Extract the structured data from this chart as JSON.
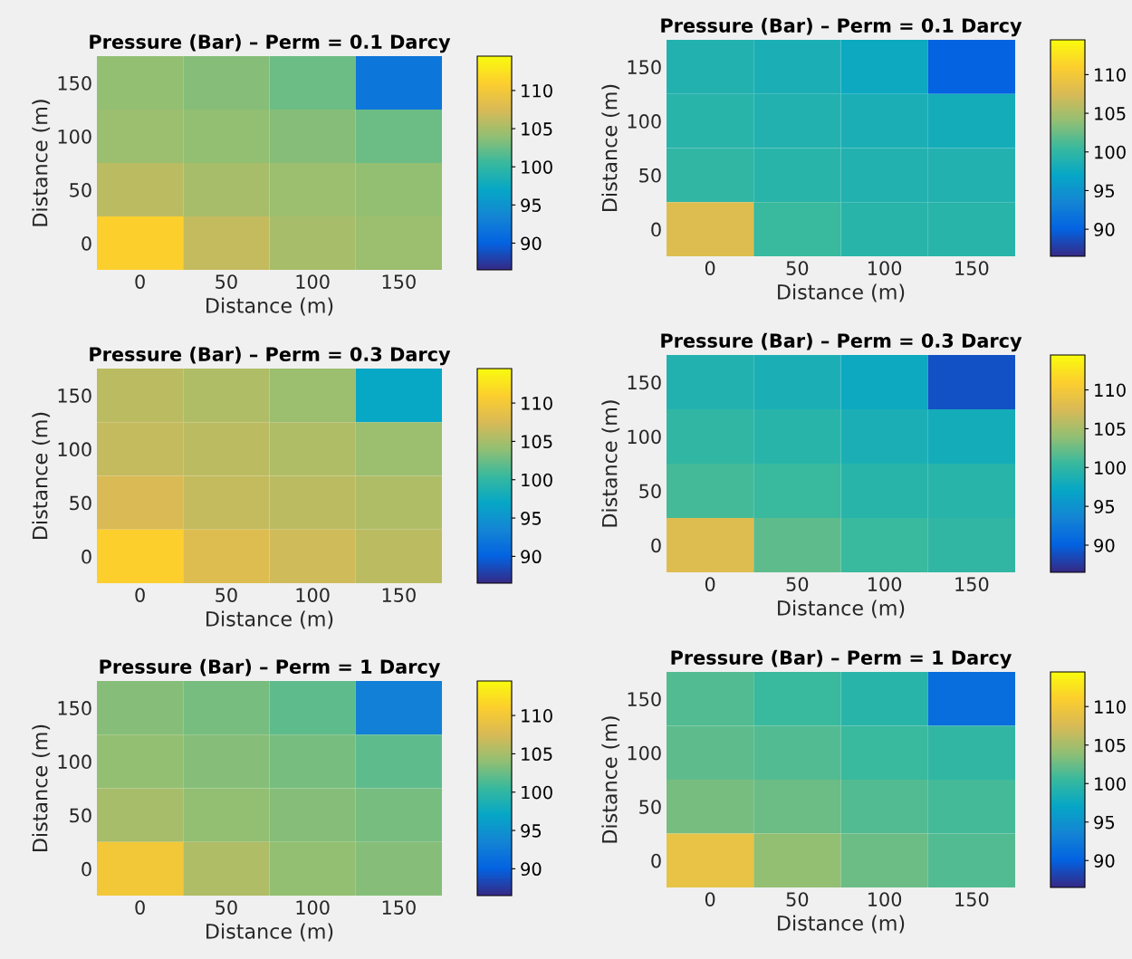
{
  "chart_data": [
    {
      "type": "heatmap",
      "title": "Pressure (Bar) – Perm = 0.1 Darcy",
      "xlabel": "Distance (m)",
      "ylabel": "Distance (m)",
      "categories": [
        "0",
        "50",
        "100",
        "150"
      ],
      "y_categories": [
        "150",
        "100",
        "50",
        "0"
      ],
      "clim": [
        86.5,
        114.5
      ],
      "cticks": [
        90,
        95,
        100,
        105,
        110
      ],
      "grid": false,
      "cells": [
        [
          104,
          103.5,
          102.5,
          92
        ],
        [
          104.5,
          104,
          103.5,
          102.5
        ],
        [
          106,
          105,
          104.5,
          104
        ],
        [
          111,
          106.5,
          105,
          104.5
        ]
      ]
    },
    {
      "type": "heatmap",
      "title": "Pressure (Bar) – Perm = 0.1 Darcy",
      "xlabel": "Distance (m)",
      "ylabel": "Distance (m)",
      "categories": [
        "0",
        "50",
        "100",
        "150"
      ],
      "y_categories": [
        "150",
        "100",
        "50",
        "0"
      ],
      "clim": [
        86.5,
        114.5
      ],
      "cticks": [
        90,
        95,
        100,
        105,
        110
      ],
      "grid": false,
      "cells": [
        [
          99,
          98.5,
          97.5,
          90
        ],
        [
          99.5,
          99,
          98.5,
          98
        ],
        [
          100,
          99.5,
          99,
          99
        ],
        [
          108,
          100.5,
          99.5,
          99.5
        ]
      ]
    },
    {
      "type": "heatmap",
      "title": "Pressure (Bar) – Perm = 0.3 Darcy",
      "xlabel": "Distance (m)",
      "ylabel": "Distance (m)",
      "categories": [
        "0",
        "50",
        "100",
        "150"
      ],
      "y_categories": [
        "150",
        "100",
        "50",
        "0"
      ],
      "clim": [
        86.5,
        114.5
      ],
      "cticks": [
        90,
        95,
        100,
        105,
        110
      ],
      "grid": false,
      "cells": [
        [
          106,
          105.5,
          104.5,
          97
        ],
        [
          106.5,
          106,
          105.5,
          104.5
        ],
        [
          107.5,
          106.5,
          106,
          105.5
        ],
        [
          111,
          108,
          107,
          106
        ]
      ]
    },
    {
      "type": "heatmap",
      "title": "Pressure (Bar) – Perm = 0.3 Darcy",
      "xlabel": "Distance (m)",
      "ylabel": "Distance (m)",
      "categories": [
        "0",
        "50",
        "100",
        "150"
      ],
      "y_categories": [
        "150",
        "100",
        "50",
        "0"
      ],
      "clim": [
        86.5,
        114.5
      ],
      "cticks": [
        90,
        95,
        100,
        105,
        110
      ],
      "grid": false,
      "cells": [
        [
          99,
          98.5,
          97.5,
          89
        ],
        [
          100,
          99.5,
          98.5,
          98
        ],
        [
          101,
          100.5,
          99.5,
          99.5
        ],
        [
          108,
          102,
          100.5,
          100
        ]
      ]
    },
    {
      "type": "heatmap",
      "title": "Pressure (Bar) – Perm = 1 Darcy",
      "xlabel": "Distance (m)",
      "ylabel": "Distance (m)",
      "categories": [
        "0",
        "50",
        "100",
        "150"
      ],
      "y_categories": [
        "150",
        "100",
        "50",
        "0"
      ],
      "clim": [
        86.5,
        114.5
      ],
      "cticks": [
        90,
        95,
        100,
        105,
        110
      ],
      "grid": false,
      "cells": [
        [
          103.5,
          103,
          102,
          93
        ],
        [
          104,
          103.5,
          103,
          102
        ],
        [
          105,
          104,
          103.5,
          103
        ],
        [
          110,
          105.5,
          104,
          103.5
        ]
      ]
    },
    {
      "type": "heatmap",
      "title": "Pressure (Bar) – Perm = 1 Darcy",
      "xlabel": "Distance (m)",
      "ylabel": "Distance (m)",
      "categories": [
        "0",
        "50",
        "100",
        "150"
      ],
      "y_categories": [
        "150",
        "100",
        "50",
        "0"
      ],
      "clim": [
        86.5,
        114.5
      ],
      "cticks": [
        90,
        95,
        100,
        105,
        110
      ],
      "grid": false,
      "cells": [
        [
          101.5,
          100.5,
          99.5,
          91
        ],
        [
          102,
          101.5,
          100.5,
          100
        ],
        [
          103,
          102.5,
          101.5,
          101
        ],
        [
          109,
          104,
          102.5,
          101.5
        ]
      ]
    }
  ]
}
